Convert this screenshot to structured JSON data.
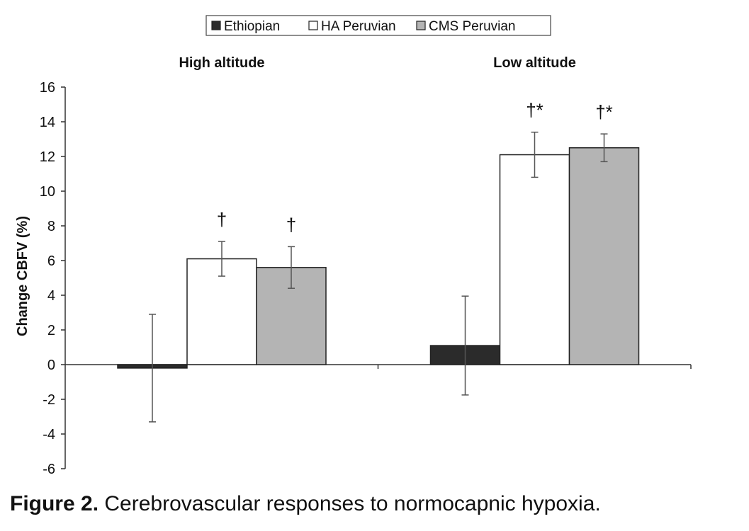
{
  "chart_data": {
    "type": "bar",
    "ylabel": "Change CBFV (%)",
    "ylim": [
      -6,
      16
    ],
    "yticks": [
      -6,
      -4,
      -2,
      0,
      2,
      4,
      6,
      8,
      10,
      12,
      14,
      16
    ],
    "grid": false,
    "legend": {
      "placement": "top-center"
    },
    "categories": [
      "High altitude",
      "Low altitude"
    ],
    "series": [
      {
        "name": "Ethiopian",
        "color": "#2b2b2b",
        "values": [
          -0.2,
          1.1
        ],
        "errors": [
          3.1,
          2.85
        ],
        "annotations": [
          "",
          ""
        ]
      },
      {
        "name": "HA Peruvian",
        "color": "#ffffff",
        "values": [
          6.1,
          12.1
        ],
        "errors": [
          1.0,
          1.3
        ],
        "annotations": [
          "†",
          "†*"
        ]
      },
      {
        "name": "CMS Peruvian",
        "color": "#b4b4b4",
        "values": [
          5.6,
          12.5
        ],
        "errors": [
          1.2,
          0.8
        ],
        "annotations": [
          "†",
          "†*"
        ]
      }
    ]
  },
  "caption": {
    "label": "Figure 2.",
    "text": " Cerebrovascular responses to normocapnic hypoxia."
  }
}
